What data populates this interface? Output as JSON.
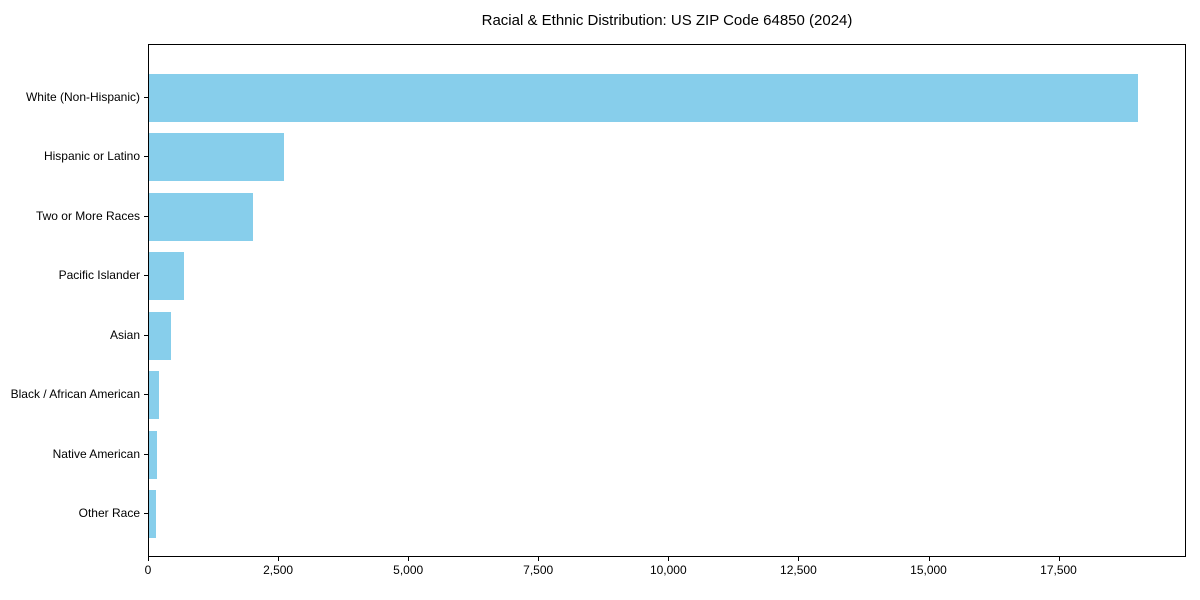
{
  "chart_data": {
    "type": "bar",
    "orientation": "horizontal",
    "title": "Racial & Ethnic Distribution: US ZIP Code 64850 (2024)",
    "categories": [
      "White (Non-Hispanic)",
      "Hispanic or Latino",
      "Two or More Races",
      "Pacific Islander",
      "Asian",
      "Black / African American",
      "Native American",
      "Other Race"
    ],
    "values": [
      19000,
      2590,
      2000,
      680,
      420,
      190,
      160,
      140
    ],
    "bar_color": "#87CEEB",
    "xlabel": "",
    "ylabel": "",
    "xlim": [
      0,
      19950
    ],
    "xticks": [
      0,
      2500,
      5000,
      7500,
      10000,
      12500,
      15000,
      17500
    ],
    "xtick_labels": [
      "0",
      "2,500",
      "5,000",
      "7,500",
      "10,000",
      "12,500",
      "15,000",
      "17,500"
    ],
    "grid": false,
    "legend": null,
    "text_color": "#000000",
    "axis_color": "#000000",
    "background_color": "#ffffff"
  }
}
